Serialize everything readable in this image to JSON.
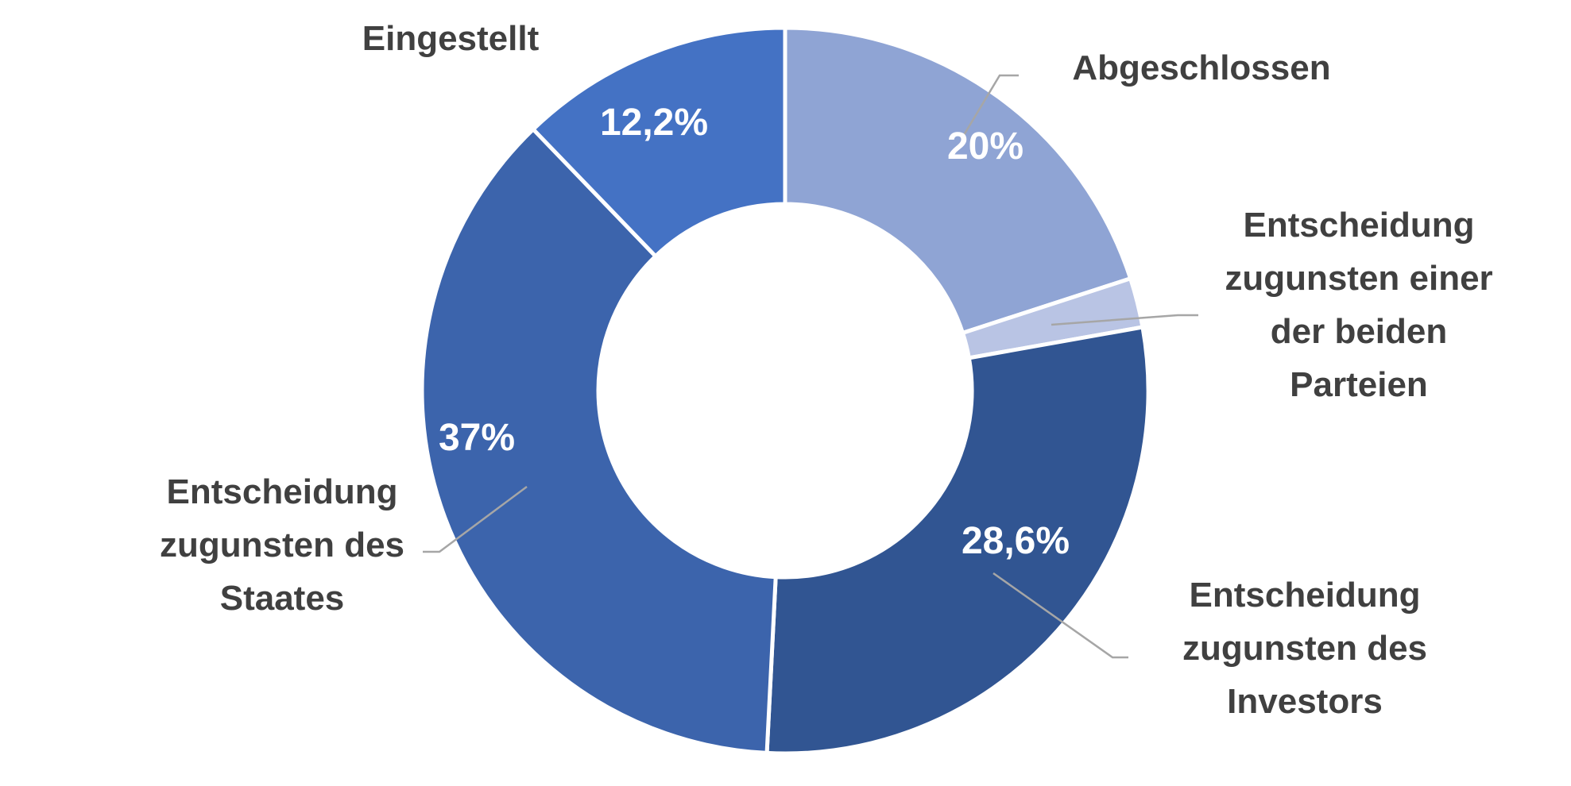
{
  "chart_data": {
    "type": "pie",
    "variant": "donut",
    "title": "",
    "slices": [
      {
        "label": [
          "Abgeschlossen"
        ],
        "value": 20,
        "value_label": "20%",
        "color": "#8FA4D4"
      },
      {
        "label": [
          "Entscheidung",
          "zugunsten einer",
          "der beiden",
          "Parteien"
        ],
        "value": 2.2,
        "value_label": "",
        "color": "#B9C4E4"
      },
      {
        "label": [
          "Entscheidung",
          "zugunsten des",
          "Investors"
        ],
        "value": 28.6,
        "value_label": "28,6%",
        "color": "#315592"
      },
      {
        "label": [
          "Entscheidung",
          "zugunsten des",
          "Staates"
        ],
        "value": 37,
        "value_label": "37%",
        "color": "#3C64AC"
      },
      {
        "label": [
          "Eingestellt"
        ],
        "value": 12.2,
        "value_label": "12,2%",
        "color": "#4472C4"
      }
    ],
    "start_angle": "top, clockwise",
    "legend": "none"
  }
}
